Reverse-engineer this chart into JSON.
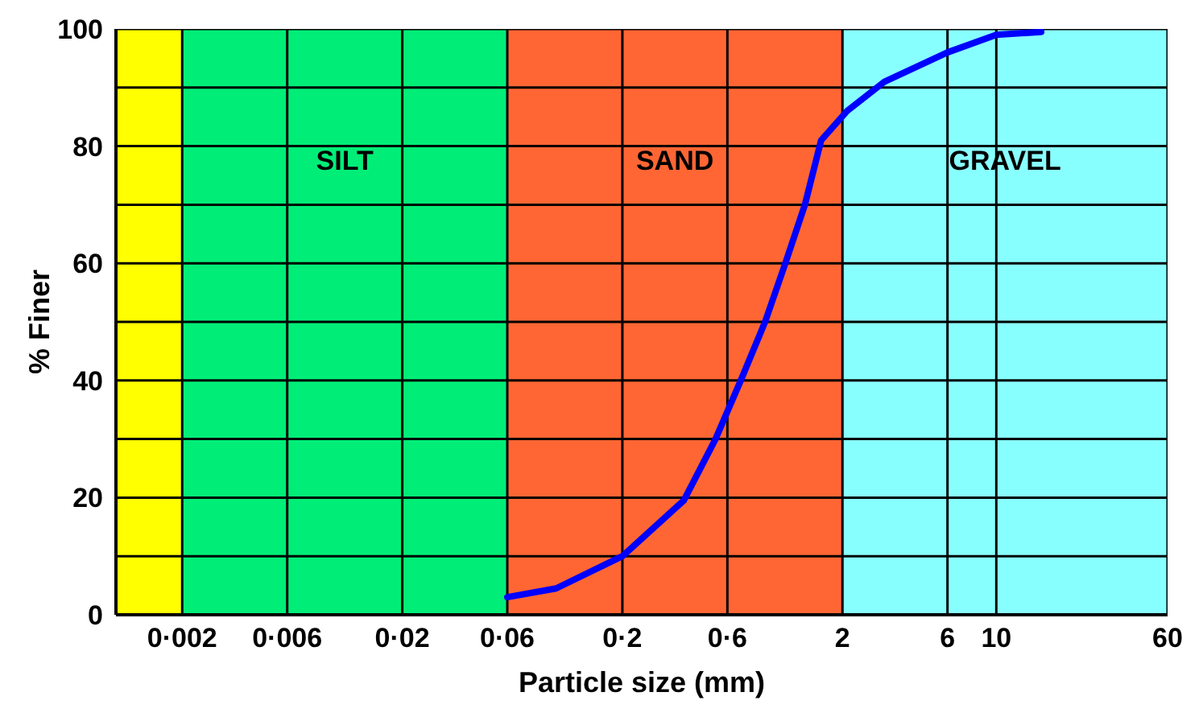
{
  "chart_data": {
    "type": "line",
    "xlabel": "Particle size (mm)",
    "ylabel": "% Finer",
    "log": "x",
    "xlim": [
      0.001,
      60
    ],
    "xticks": [
      {
        "value": 0.002,
        "label": "0·002"
      },
      {
        "value": 0.006,
        "label": "0·006"
      },
      {
        "value": 0.02,
        "label": "0·02"
      },
      {
        "value": 0.06,
        "label": "0·06"
      },
      {
        "value": 0.2,
        "label": "0·2"
      },
      {
        "value": 0.6,
        "label": "0·6"
      },
      2,
      6,
      10,
      60
    ],
    "ylim": [
      0,
      100
    ],
    "yticks": [
      0,
      {
        "value": 10,
        "label": null
      },
      20,
      {
        "value": 30,
        "label": null
      },
      40,
      {
        "value": 50,
        "label": null
      },
      60,
      {
        "value": 70,
        "label": null
      },
      80,
      {
        "value": 90,
        "label": null
      },
      100
    ],
    "grid": true,
    "marker": "none",
    "line_style": "solid",
    "legend": false,
    "bands": [
      {
        "axis": "x",
        "from": 0.001,
        "to": 0.002,
        "color": "#ffff00"
      },
      {
        "axis": "x",
        "from": 0.002,
        "to": 0.06,
        "label": "SILT",
        "color": "#00ee77"
      },
      {
        "axis": "x",
        "from": 0.06,
        "to": 2,
        "label": "SAND",
        "color": "#ff6633"
      },
      {
        "axis": "x",
        "from": 2,
        "to": 60,
        "label": "GRAVEL",
        "color": "#88ffff"
      }
    ],
    "series": [
      {
        "color": "#0000ff",
        "x": [
          0.06,
          0.1,
          0.2,
          0.38,
          0.53,
          0.69,
          0.89,
          1.1,
          1.35,
          1.6,
          2.1,
          3.1,
          6,
          10,
          16
        ],
        "values": [
          3,
          4.5,
          10,
          19.5,
          30,
          40,
          50,
          60,
          70,
          81,
          86,
          91,
          96,
          99,
          99.5
        ]
      }
    ]
  }
}
